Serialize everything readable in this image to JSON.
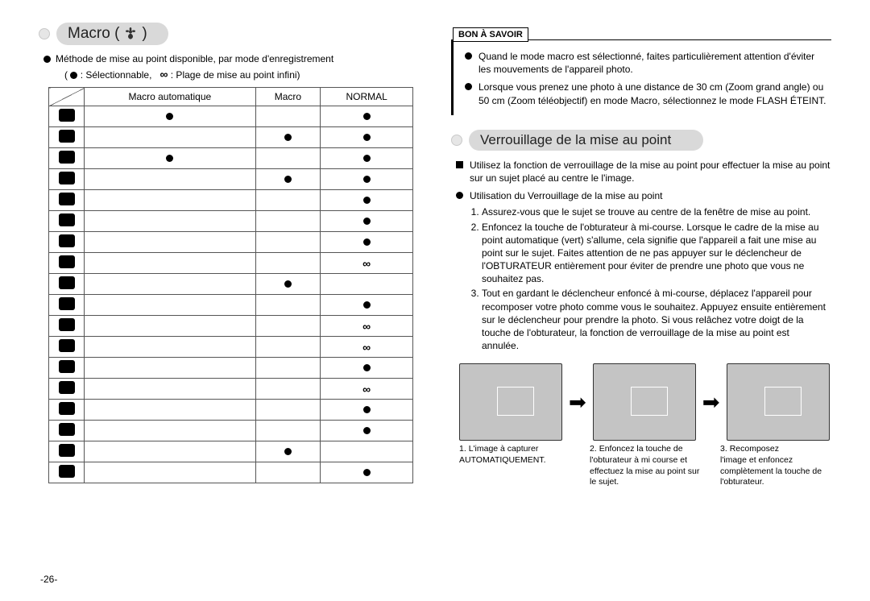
{
  "left": {
    "title_prefix": "Macro (",
    "title_suffix": " )",
    "intro": "Méthode de mise au point disponible, par mode d'enregistrement",
    "legend_select": ": Sélectionnable,",
    "legend_infini": ": Plage de mise au point infini)",
    "cols": [
      "",
      "Macro automatique",
      "Macro",
      "NORMAL"
    ],
    "rows": [
      {
        "auto": "●",
        "macro": "",
        "normal": "●"
      },
      {
        "auto": "",
        "macro": "●",
        "normal": "●"
      },
      {
        "auto": "●",
        "macro": "",
        "normal": "●"
      },
      {
        "auto": "",
        "macro": "●",
        "normal": "●"
      },
      {
        "auto": "",
        "macro": "",
        "normal": "●"
      },
      {
        "auto": "",
        "macro": "",
        "normal": "●"
      },
      {
        "auto": "",
        "macro": "",
        "normal": "●"
      },
      {
        "auto": "",
        "macro": "",
        "normal": "∞"
      },
      {
        "auto": "",
        "macro": "●",
        "normal": ""
      },
      {
        "auto": "",
        "macro": "",
        "normal": "●"
      },
      {
        "auto": "",
        "macro": "",
        "normal": "∞"
      },
      {
        "auto": "",
        "macro": "",
        "normal": "∞"
      },
      {
        "auto": "",
        "macro": "",
        "normal": "●"
      },
      {
        "auto": "",
        "macro": "",
        "normal": "∞"
      },
      {
        "auto": "",
        "macro": "",
        "normal": "●"
      },
      {
        "auto": "",
        "macro": "",
        "normal": "●"
      },
      {
        "auto": "",
        "macro": "●",
        "normal": ""
      },
      {
        "auto": "",
        "macro": "",
        "normal": "●"
      }
    ]
  },
  "right": {
    "info_label": "BON À SAVOIR",
    "info_items": [
      "Quand le mode macro est sélectionné, faites particulièrement attention d'éviter les mouvements de l'appareil photo.",
      "Lorsque vous prenez une photo à une distance de 30 cm (Zoom grand angle) ou 50 cm (Zoom téléobjectif) en mode Macro, sélectionnez le mode FLASH ÉTEINT."
    ],
    "section_title": "Verrouillage de la mise au point",
    "fl_intro": "Utilisez la fonction de verrouillage de la mise au point pour effectuer la mise au point sur un sujet placé au centre le l'image.",
    "util": "Utilisation du Verrouillage de la mise au point",
    "steps": [
      "Assurez-vous que le sujet se trouve au centre de la fenêtre de mise au point.",
      "Enfoncez la touche de l'obturateur à mi-course. Lorsque le cadre de la mise au point automatique (vert) s'allume, cela signifie que l'appareil a fait une mise au point sur le sujet. Faites attention de ne pas appuyer sur le déclencheur de l'OBTURATEUR entièrement pour éviter de prendre une photo que vous ne souhaitez pas.",
      "Tout en gardant le déclencheur enfoncé à mi-course, déplacez l'appareil pour recomposer votre photo comme vous le souhaitez. Appuyez ensuite entièrement sur le déclencheur pour prendre la photo. Si vous relâchez votre doigt de la touche de l'obturateur, la fonction de verrouillage de la mise au point est annulée."
    ],
    "captions": [
      {
        "n": "1.",
        "l1": "L'image à capturer",
        "l2": "AUTOMATIQUEMENT."
      },
      {
        "n": "2.",
        "l1": "Enfoncez la touche de",
        "l2": "l'obturateur à mi course et effectuez la mise au point sur le sujet."
      },
      {
        "n": "3.",
        "l1": "Recomposez",
        "l2": "l'image et enfoncez complètement la touche de l'obturateur."
      }
    ]
  },
  "page_number": "-26-",
  "colors": {
    "pill_bg": "#d9d9d9",
    "border": "#555"
  }
}
